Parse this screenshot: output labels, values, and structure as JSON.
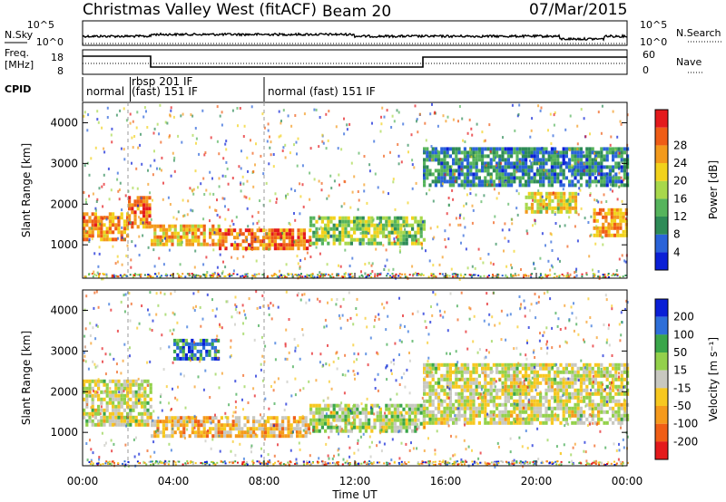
{
  "header": {
    "title": "Christmas Valley West (fitACF)",
    "beam": "Beam 20",
    "date": "07/Mar/2015"
  },
  "panels": {
    "nsky": {
      "label": "N.Sky",
      "tick_top": "10^5",
      "tick_bottom": "10^0",
      "right_label": "N.Search",
      "right_tick_top": "10^5",
      "right_tick_bottom": "10^0"
    },
    "freq": {
      "label_line1": "Freq.",
      "label_line2": "[MHz]",
      "tick_top": "18",
      "tick_bottom": "8",
      "right_label": "Nave",
      "right_tick_top": "60",
      "right_tick_bottom": "0"
    },
    "cpid": {
      "label": "CPID",
      "segments": [
        {
          "text": "normal",
          "start_hour": 0.0
        },
        {
          "text": "rbsp 201 IF",
          "start_hour": 2.1
        },
        {
          "text": "(fast) 151 IF",
          "start_hour": 2.1
        },
        {
          "text": "normal (fast) 151 IF",
          "start_hour": 8.0
        }
      ]
    }
  },
  "axes": {
    "xlabel": "Time UT",
    "xticks": [
      "00:00",
      "04:00",
      "08:00",
      "12:00",
      "16:00",
      "20:00",
      "00:00"
    ],
    "ylabel": "Slant Range [km]",
    "yticks": [
      "1000",
      "2000",
      "3000",
      "4000"
    ]
  },
  "colorbars": {
    "power": {
      "label": "Power [dB]",
      "ticks": [
        "4",
        "8",
        "12",
        "16",
        "20",
        "24",
        "28"
      ],
      "colors": [
        "#0a1fd6",
        "#2a63d9",
        "#2e8b57",
        "#56b45c",
        "#a8d84b",
        "#f2d21c",
        "#f39a1c",
        "#ef5d16",
        "#e41a1c"
      ]
    },
    "velocity": {
      "label": "Velocity [m s⁻¹]",
      "ticks": [
        "200",
        "100",
        "50",
        "15",
        "-15",
        "-50",
        "-100",
        "-200"
      ],
      "colors": [
        "#0a1fd6",
        "#2e6fd9",
        "#3aa64a",
        "#93d14b",
        "#c8c8c0",
        "#f7c820",
        "#f59a1c",
        "#f05e16",
        "#e41a1c"
      ]
    }
  },
  "chart_data": [
    {
      "type": "heatmap",
      "name": "power",
      "x_range_hours": [
        0,
        24
      ],
      "y_range_km": [
        180,
        4500
      ],
      "bands": [
        {
          "t0": 0.0,
          "t1": 2.0,
          "r0": 1100,
          "r1": 1800,
          "value_db": 22
        },
        {
          "t0": 2.0,
          "t1": 3.0,
          "r0": 1400,
          "r1": 2200,
          "value_db": 24
        },
        {
          "t0": 3.0,
          "t1": 6.0,
          "r0": 1000,
          "r1": 1500,
          "value_db": 20
        },
        {
          "t0": 6.0,
          "t1": 10.0,
          "r0": 900,
          "r1": 1400,
          "value_db": 24
        },
        {
          "t0": 10.0,
          "t1": 15.0,
          "r0": 1000,
          "r1": 1700,
          "value_db": 14
        },
        {
          "t0": 15.0,
          "t1": 24.0,
          "r0": 2500,
          "r1": 3400,
          "value_db": 8
        },
        {
          "t0": 19.5,
          "t1": 21.8,
          "r0": 1800,
          "r1": 2300,
          "value_db": 18
        },
        {
          "t0": 22.5,
          "t1": 24.0,
          "r0": 1200,
          "r1": 1900,
          "value_db": 22
        }
      ]
    },
    {
      "type": "heatmap",
      "name": "velocity",
      "x_range_hours": [
        0,
        24
      ],
      "y_range_km": [
        180,
        4500
      ],
      "bands": [
        {
          "t0": 0.0,
          "t1": 3.0,
          "r0": 1200,
          "r1": 2300,
          "value_ms": 0
        },
        {
          "t0": 3.0,
          "t1": 10.0,
          "r0": 900,
          "r1": 1400,
          "value_ms": -60
        },
        {
          "t0": 10.0,
          "t1": 15.0,
          "r0": 1000,
          "r1": 1700,
          "value_ms": 30
        },
        {
          "t0": 15.0,
          "t1": 24.0,
          "r0": 1200,
          "r1": 2700,
          "value_ms": 0
        },
        {
          "t0": 4.0,
          "t1": 6.0,
          "r0": 2800,
          "r1": 3300,
          "value_ms": 150
        }
      ]
    }
  ]
}
